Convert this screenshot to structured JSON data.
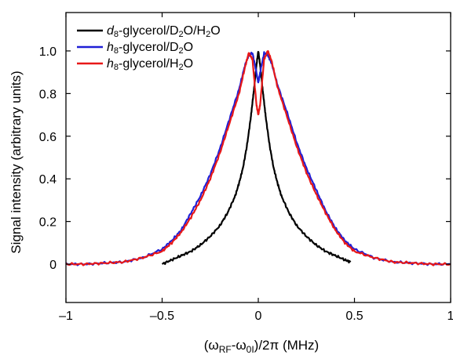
{
  "chart_data": {
    "type": "line",
    "title": "",
    "xlabel": "(ω_RF-ω_0I)/2π (MHz)",
    "xlabel_parts": [
      "(ω",
      "RF",
      "-ω",
      "0I",
      ")/2π (MHz)"
    ],
    "ylabel": "Signal intensity (arbitrary units)",
    "xlim": [
      -1,
      1
    ],
    "ylim": [
      -0.18,
      1.18
    ],
    "xticks": [
      -1,
      -0.5,
      0,
      0.5,
      1
    ],
    "xtick_labels": [
      "–1",
      "–0.5",
      "0",
      "0.5",
      "1"
    ],
    "yticks": [
      0,
      0.2,
      0.4,
      0.6,
      0.8,
      1.0
    ],
    "ytick_labels": [
      "0",
      "0.2",
      "0.4",
      "0.6",
      "0.8",
      "1.0"
    ],
    "grid": false,
    "legend_position": "top-left",
    "series": [
      {
        "name": "d8-glycerol/D2O/H2O",
        "legend_parts": [
          {
            "t": "d",
            "s": "italic"
          },
          {
            "t": "8",
            "s": "sub"
          },
          {
            "t": "-glycerol/D"
          },
          {
            "t": "2",
            "s": "sub"
          },
          {
            "t": "O/H"
          },
          {
            "t": "2",
            "s": "sub"
          },
          {
            "t": "O"
          }
        ],
        "color": "#000000",
        "x": [
          -0.5,
          -0.45,
          -0.4,
          -0.35,
          -0.3,
          -0.25,
          -0.2,
          -0.16,
          -0.12,
          -0.1,
          -0.08,
          -0.06,
          -0.04,
          -0.03,
          -0.02,
          -0.01,
          0,
          0.01,
          0.02,
          0.03,
          0.04,
          0.06,
          0.08,
          0.1,
          0.12,
          0.16,
          0.2,
          0.25,
          0.3,
          0.35,
          0.4,
          0.45,
          0.48
        ],
        "y": [
          0.0,
          0.02,
          0.04,
          0.06,
          0.09,
          0.13,
          0.18,
          0.24,
          0.32,
          0.38,
          0.45,
          0.55,
          0.68,
          0.76,
          0.84,
          0.93,
          1.0,
          0.93,
          0.84,
          0.76,
          0.68,
          0.55,
          0.45,
          0.38,
          0.32,
          0.24,
          0.18,
          0.13,
          0.09,
          0.06,
          0.04,
          0.02,
          0.01
        ]
      },
      {
        "name": "h8-glycerol/D2O",
        "legend_parts": [
          {
            "t": "h",
            "s": "italic"
          },
          {
            "t": "8",
            "s": "sub"
          },
          {
            "t": "-glycerol/D"
          },
          {
            "t": "2",
            "s": "sub"
          },
          {
            "t": "O"
          }
        ],
        "color": "#1f1fd6",
        "x": [
          -1,
          -0.9,
          -0.8,
          -0.7,
          -0.6,
          -0.5,
          -0.45,
          -0.4,
          -0.35,
          -0.3,
          -0.25,
          -0.2,
          -0.15,
          -0.1,
          -0.07,
          -0.05,
          -0.03,
          -0.01,
          0,
          0.01,
          0.03,
          0.05,
          0.07,
          0.1,
          0.15,
          0.2,
          0.25,
          0.3,
          0.35,
          0.4,
          0.45,
          0.5,
          0.6,
          0.7,
          0.8,
          0.9,
          1
        ],
        "y": [
          0.0,
          0.0,
          0.005,
          0.01,
          0.03,
          0.07,
          0.11,
          0.16,
          0.24,
          0.32,
          0.42,
          0.54,
          0.68,
          0.82,
          0.93,
          0.98,
          0.99,
          0.9,
          0.85,
          0.9,
          0.99,
          0.98,
          0.94,
          0.84,
          0.71,
          0.57,
          0.45,
          0.35,
          0.25,
          0.17,
          0.11,
          0.07,
          0.03,
          0.01,
          0.005,
          0.0,
          0.0
        ]
      },
      {
        "name": "h8-glycerol/H2O",
        "legend_parts": [
          {
            "t": "h",
            "s": "italic"
          },
          {
            "t": "8",
            "s": "sub"
          },
          {
            "t": "-glycerol/H"
          },
          {
            "t": "2",
            "s": "sub"
          },
          {
            "t": "O"
          }
        ],
        "color": "#e81818",
        "x": [
          -1,
          -0.9,
          -0.8,
          -0.7,
          -0.6,
          -0.5,
          -0.45,
          -0.4,
          -0.35,
          -0.3,
          -0.25,
          -0.2,
          -0.15,
          -0.1,
          -0.07,
          -0.05,
          -0.03,
          -0.01,
          0,
          0.01,
          0.03,
          0.05,
          0.07,
          0.1,
          0.15,
          0.2,
          0.25,
          0.3,
          0.35,
          0.4,
          0.45,
          0.5,
          0.6,
          0.7,
          0.8,
          0.9,
          1
        ],
        "y": [
          0.0,
          0.0,
          0.005,
          0.01,
          0.03,
          0.06,
          0.1,
          0.15,
          0.22,
          0.3,
          0.4,
          0.52,
          0.66,
          0.8,
          0.92,
          0.99,
          0.96,
          0.75,
          0.7,
          0.75,
          0.96,
          1.0,
          0.95,
          0.83,
          0.69,
          0.55,
          0.43,
          0.33,
          0.24,
          0.16,
          0.1,
          0.06,
          0.03,
          0.01,
          0.005,
          0.0,
          0.0
        ]
      }
    ]
  }
}
